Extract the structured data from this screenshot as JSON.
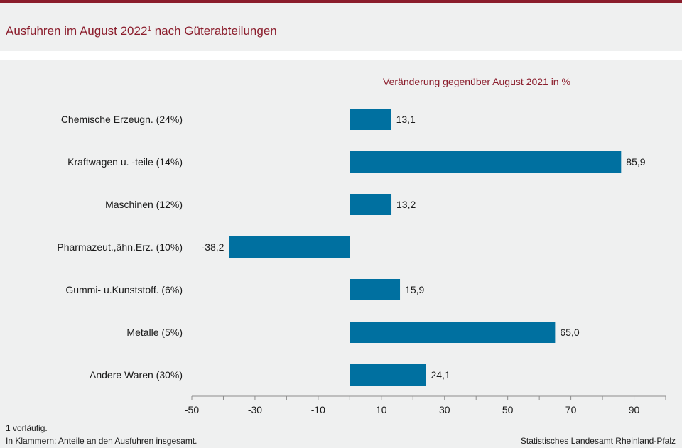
{
  "header": {
    "title_main": "Ausfuhren im August 2022",
    "title_sup": "1",
    "title_rest": "nach Güterabteilungen"
  },
  "footer": {
    "note": "1 vorläufig.",
    "explanation": "In Klammern: Anteile an den Ausfuhren insgesamt.",
    "source": "Statistisches Landesamt Rheinland-Pfalz"
  },
  "colors": {
    "accent": "#8b1d2c",
    "bar": "#0070a0",
    "background": "#eff0f0"
  },
  "chart_data": {
    "type": "bar",
    "orientation": "horizontal",
    "title": "Veränderung gegenüber August 2021 in %",
    "categories": [
      "Chemische Erzeugn. (24%)",
      "Kraftwagen u. -teile (14%)",
      "Maschinen (12%)",
      "Pharmazeut.,ähn.Erz. (10%)",
      "Gummi- u.Kunststoff. (6%)",
      "Metalle (5%)",
      "Andere Waren (30%)"
    ],
    "values": [
      13.1,
      85.9,
      13.2,
      -38.2,
      15.9,
      65.0,
      24.1
    ],
    "value_labels": [
      "13,1",
      "85,9",
      "13,2",
      "-38,2",
      "15,9",
      "65,0",
      "24,1"
    ],
    "xlim": [
      -50,
      100
    ],
    "xticks": [
      -50,
      -30,
      -10,
      10,
      30,
      50,
      70,
      90
    ],
    "xtick_labels": [
      "-50",
      "-30",
      "-10",
      "10",
      "30",
      "50",
      "70",
      "90"
    ],
    "grid": false
  }
}
